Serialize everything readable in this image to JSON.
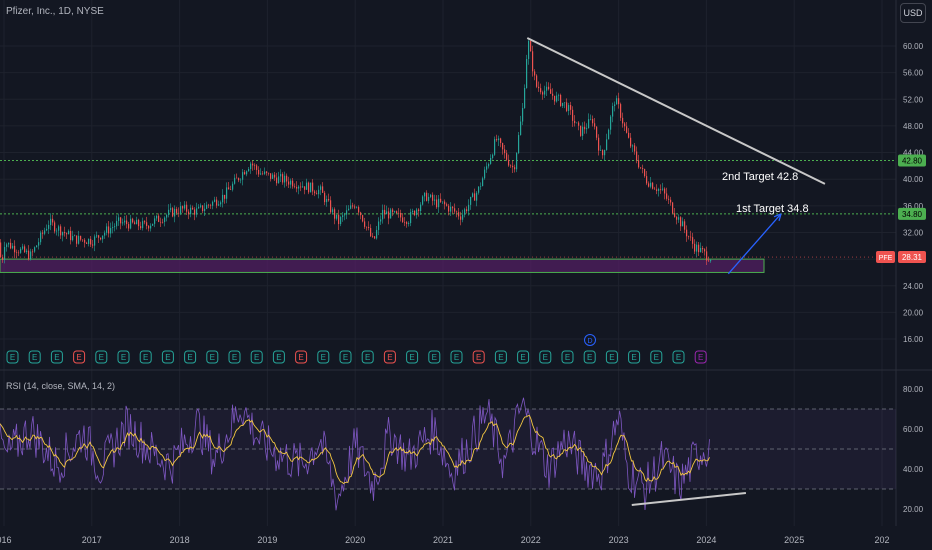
{
  "header": {
    "title": "Pfizer, Inc., 1D, NYSE"
  },
  "currency_button": "USD",
  "symbol_tag": "PFE",
  "annotations": {
    "target1": "1st Target 34.8",
    "target2": "2nd Target 42.8"
  },
  "rsi": {
    "label": "RSI (14, close, SMA, 14, 2)"
  },
  "colors": {
    "background": "#131722",
    "up": "#26a69a",
    "down": "#ef5350",
    "rsi_line": "#7e57c2",
    "rsi_ma": "#f5c842",
    "support_zone": "#5a1f6b",
    "target_line": "#4caf50",
    "arrow": "#2962ff",
    "trendline": "#c8c8c8"
  },
  "chart_data": {
    "type": "candlestick",
    "x_ticks": [
      "016",
      "2017",
      "2018",
      "2019",
      "2020",
      "2021",
      "2022",
      "2023",
      "2024",
      "2025",
      "202"
    ],
    "y_ticks": [
      "60.00",
      "56.00",
      "52.00",
      "48.00",
      "44.00",
      "40.00",
      "36.00",
      "32.00",
      "28.00",
      "24.00",
      "20.00",
      "16.00"
    ],
    "ylim": [
      13,
      64
    ],
    "price_path": [
      [
        2016.0,
        30.5
      ],
      [
        2016.3,
        28.5
      ],
      [
        2016.5,
        33.5
      ],
      [
        2016.8,
        31
      ],
      [
        2017.0,
        30.8
      ],
      [
        2017.3,
        33.5
      ],
      [
        2017.6,
        33
      ],
      [
        2017.9,
        35
      ],
      [
        2018.0,
        35.5
      ],
      [
        2018.2,
        35.2
      ],
      [
        2018.5,
        37.5
      ],
      [
        2018.8,
        42.5
      ],
      [
        2018.9,
        41
      ],
      [
        2019.0,
        40.5
      ],
      [
        2019.3,
        39.5
      ],
      [
        2019.6,
        38.2
      ],
      [
        2019.8,
        33.5
      ],
      [
        2020.0,
        36.5
      ],
      [
        2020.2,
        30.5
      ],
      [
        2020.3,
        35
      ],
      [
        2020.6,
        34
      ],
      [
        2020.8,
        37.5
      ],
      [
        2020.9,
        36.5
      ],
      [
        2021.0,
        36.2
      ],
      [
        2021.2,
        34.5
      ],
      [
        2021.4,
        38.5
      ],
      [
        2021.6,
        46
      ],
      [
        2021.7,
        43.5
      ],
      [
        2021.8,
        41.5
      ],
      [
        2021.9,
        50.5
      ],
      [
        2021.96,
        61
      ],
      [
        2022.05,
        54
      ],
      [
        2022.2,
        53
      ],
      [
        2022.4,
        51
      ],
      [
        2022.55,
        47
      ],
      [
        2022.7,
        49
      ],
      [
        2022.8,
        43
      ],
      [
        2022.95,
        52
      ],
      [
        2023.0,
        50.5
      ],
      [
        2023.1,
        46
      ],
      [
        2023.3,
        40
      ],
      [
        2023.5,
        38
      ],
      [
        2023.7,
        33.5
      ],
      [
        2023.85,
        30
      ],
      [
        2024.0,
        28.5
      ],
      [
        2024.05,
        28.3
      ]
    ],
    "last_price": 28.31,
    "last_price_label": "28.31",
    "levels": [
      {
        "value": 42.8,
        "label": "42.80"
      },
      {
        "value": 34.8,
        "label": "34.80"
      }
    ],
    "support_zone": [
      26,
      28
    ],
    "trendline": [
      [
        2021.96,
        61.2
      ],
      [
        2025.35,
        39.3
      ]
    ],
    "projection_arrow": [
      [
        2024.25,
        25.8
      ],
      [
        2024.85,
        34.8
      ]
    ],
    "earnings_markers": [
      "E",
      "E",
      "E",
      "E",
      "E",
      "E",
      "E",
      "E",
      "E",
      "E",
      "E",
      "E",
      "E",
      "E",
      "E",
      "E",
      "E",
      "E",
      "E",
      "E",
      "E",
      "E",
      "E",
      "E",
      "E",
      "E",
      "E",
      "E",
      "E",
      "E",
      "E",
      "E"
    ],
    "dividend_marker": "D",
    "rsi_ticks": [
      "80.00",
      "60.00",
      "40.00",
      "20.00"
    ],
    "rsi_ylim": [
      14,
      88
    ],
    "rsi_bands": [
      30,
      50,
      70
    ],
    "rsi_path": [
      [
        2016.0,
        45
      ],
      [
        2016.3,
        60
      ],
      [
        2016.6,
        42
      ],
      [
        2016.9,
        58
      ],
      [
        2017.1,
        40
      ],
      [
        2017.4,
        62
      ],
      [
        2017.7,
        48
      ],
      [
        2017.9,
        42
      ],
      [
        2018.2,
        63
      ],
      [
        2018.4,
        45
      ],
      [
        2018.7,
        72
      ],
      [
        2018.9,
        55
      ],
      [
        2019.1,
        48
      ],
      [
        2019.4,
        42
      ],
      [
        2019.6,
        55
      ],
      [
        2019.8,
        25
      ],
      [
        2020.0,
        52
      ],
      [
        2020.2,
        32
      ],
      [
        2020.4,
        58
      ],
      [
        2020.6,
        45
      ],
      [
        2020.9,
        60
      ],
      [
        2021.1,
        38
      ],
      [
        2021.3,
        52
      ],
      [
        2021.5,
        68
      ],
      [
        2021.7,
        42
      ],
      [
        2021.9,
        72
      ],
      [
        2022.0,
        60
      ],
      [
        2022.2,
        40
      ],
      [
        2022.4,
        55
      ],
      [
        2022.6,
        42
      ],
      [
        2022.8,
        38
      ],
      [
        2023.0,
        66
      ],
      [
        2023.1,
        40
      ],
      [
        2023.3,
        30
      ],
      [
        2023.5,
        45
      ],
      [
        2023.7,
        32
      ],
      [
        2023.9,
        48
      ],
      [
        2024.05,
        52
      ]
    ],
    "rsi_divergence": [
      [
        2023.15,
        22
      ],
      [
        2024.45,
        28
      ]
    ]
  }
}
